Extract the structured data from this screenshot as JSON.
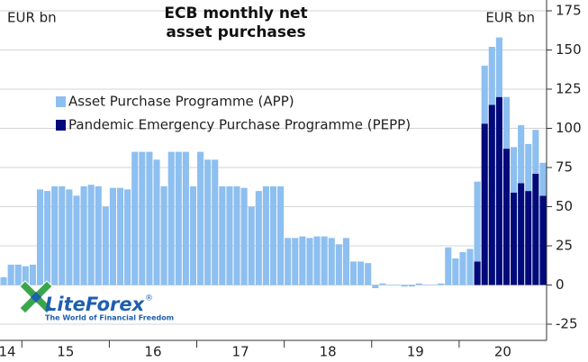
{
  "chart_data": {
    "type": "stacked_bar",
    "title": "ECB monthly net asset purchases",
    "y_unit_left": "EUR bn",
    "y_unit_right": "EUR bn",
    "categories": [
      null,
      null,
      null,
      null,
      null,
      null,
      null,
      null,
      null,
      null,
      null,
      null,
      null,
      null,
      null,
      null,
      null,
      null,
      null,
      null,
      null,
      null,
      null,
      null,
      null,
      null,
      null,
      null,
      null,
      null,
      null,
      null,
      null,
      null,
      null,
      null,
      null,
      null,
      null,
      null,
      null,
      null,
      null,
      null,
      null,
      null,
      null,
      null,
      null,
      null,
      null,
      null,
      null,
      null,
      null,
      null,
      null,
      null,
      null,
      null,
      null,
      null,
      null,
      null,
      null,
      null,
      null,
      null,
      null,
      null,
      null,
      null,
      null,
      null,
      null
    ],
    "x_labels": [
      "14",
      "15",
      "16",
      "17",
      "18",
      "19",
      "20"
    ],
    "series": [
      {
        "name": "Pandemic Emergency Purchase Programme (PEPP)",
        "color": "#000a7a",
        "values": [
          null,
          null,
          null,
          null,
          null,
          null,
          null,
          null,
          null,
          null,
          null,
          null,
          null,
          null,
          null,
          null,
          null,
          null,
          null,
          null,
          null,
          null,
          null,
          null,
          null,
          null,
          null,
          null,
          null,
          null,
          null,
          null,
          null,
          null,
          null,
          null,
          null,
          null,
          null,
          null,
          null,
          null,
          null,
          null,
          null,
          null,
          null,
          null,
          null,
          null,
          null,
          null,
          null,
          null,
          null,
          null,
          null,
          null,
          null,
          null,
          null,
          null,
          null,
          null,
          null,
          15,
          103,
          115,
          120,
          87,
          59,
          65,
          60,
          71,
          57
        ]
      },
      {
        "name": "Asset Purchase Programme (APP)",
        "color": "#8dbff0",
        "values": [
          5,
          13,
          13,
          12,
          13,
          61,
          60,
          63,
          63,
          61,
          57,
          63,
          64,
          63,
          50,
          62,
          62,
          61,
          85,
          85,
          85,
          80,
          63,
          85,
          85,
          85,
          63,
          85,
          80,
          80,
          63,
          63,
          63,
          62,
          50,
          60,
          63,
          63,
          63,
          30,
          30,
          31,
          30,
          31,
          31,
          30,
          26,
          30,
          15,
          15,
          14,
          -2,
          1,
          0,
          0,
          -1,
          -1,
          1,
          0,
          0,
          1,
          24,
          17,
          21,
          23,
          51,
          37,
          37,
          38,
          33,
          29,
          37,
          30,
          28,
          21
        ]
      }
    ],
    "ylim": [
      -25,
      175
    ],
    "yticks": [
      -25,
      0,
      25,
      50,
      75,
      100,
      125,
      150,
      175
    ],
    "grid": true,
    "logo": {
      "name": "LiteForex",
      "mark": "®",
      "tagline": "The World of Financial Freedom"
    }
  }
}
